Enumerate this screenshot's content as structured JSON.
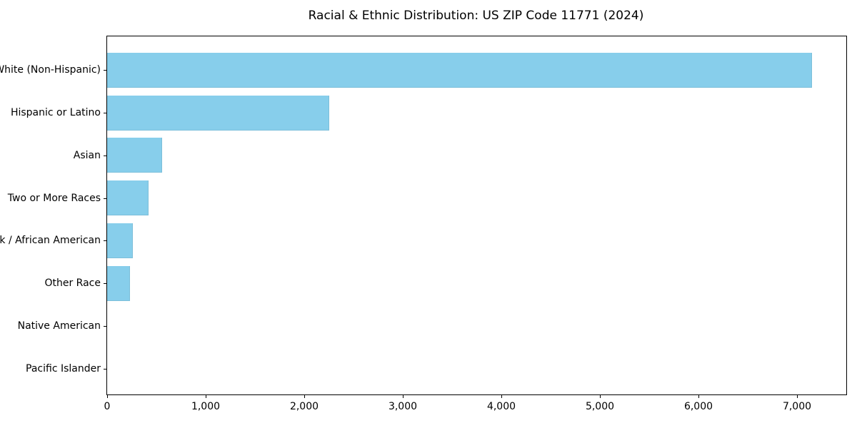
{
  "chart_data": {
    "type": "bar",
    "orientation": "horizontal",
    "title": "Racial & Ethnic Distribution: US ZIP Code 11771 (2024)",
    "categories": [
      "White (Non-Hispanic)",
      "Hispanic or Latino",
      "Asian",
      "Two or More Races",
      "Black / African American",
      "Other Race",
      "Native American",
      "Pacific Islander"
    ],
    "values": [
      7150,
      2250,
      560,
      420,
      260,
      230,
      0,
      0
    ],
    "xlabel": "",
    "ylabel": "",
    "xlim": [
      0,
      7500
    ],
    "xticks": [
      0,
      1000,
      2000,
      3000,
      4000,
      5000,
      6000,
      7000
    ],
    "xtick_labels": [
      "0",
      "1,000",
      "2,000",
      "3,000",
      "4,000",
      "5,000",
      "6,000",
      "7,000"
    ],
    "grid": false,
    "legend": null,
    "bar_color": "#87CEEB",
    "axis_color": "#000000",
    "text_color": "#000000",
    "background_color": "#ffffff"
  }
}
